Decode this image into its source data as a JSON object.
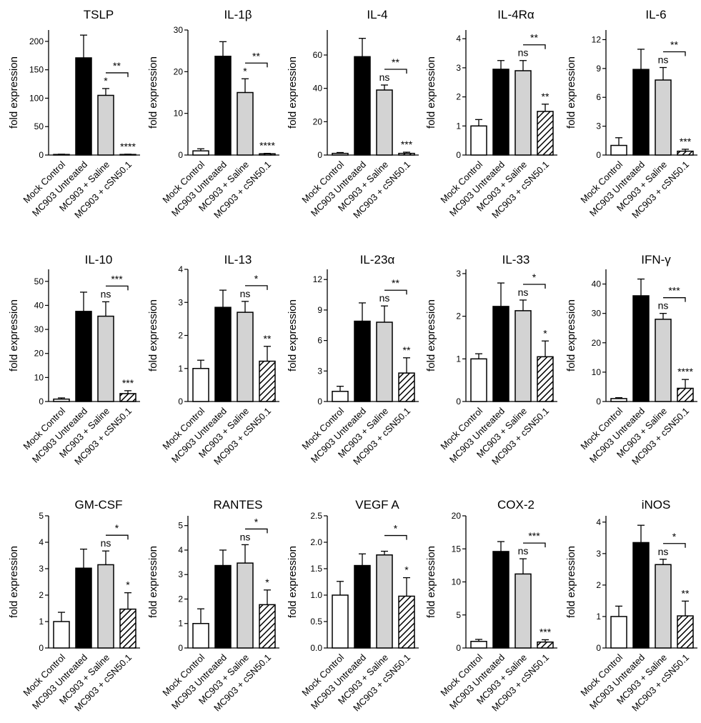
{
  "chart_data": [
    {
      "type": "bar",
      "title": "TSLP",
      "ylabel": "fold expression",
      "categories": [
        "Mock Control",
        "MC903 Untreated",
        "MC903 + Saline",
        "MC903 + cSN50.1"
      ],
      "values": [
        1,
        171,
        105,
        1
      ],
      "errors": [
        0.5,
        40,
        12,
        0.5
      ],
      "ylim": [
        0,
        220
      ],
      "yticks": [
        "0",
        "50",
        "100",
        "150",
        "200"
      ],
      "yticks_values": [
        0,
        50,
        100,
        150,
        200
      ],
      "bar_sig": [
        "",
        "",
        "*",
        "****"
      ],
      "bracket_sig": "**"
    },
    {
      "type": "bar",
      "title": "IL-1β",
      "ylabel": "fold expression",
      "categories": [
        "Mock Control",
        "MC903 Untreated",
        "MC903 + Saline",
        "MC903 + cSN50.1"
      ],
      "values": [
        1,
        23.7,
        15,
        0.3
      ],
      "errors": [
        0.5,
        3.5,
        3.3,
        0.1
      ],
      "ylim": [
        0,
        30
      ],
      "yticks": [
        "0",
        "10",
        "20",
        "30"
      ],
      "yticks_values": [
        0,
        10,
        20,
        30
      ],
      "bar_sig": [
        "",
        "",
        "*",
        "****"
      ],
      "bracket_sig": "**"
    },
    {
      "type": "bar",
      "title": "IL-4",
      "ylabel": "fold expression",
      "categories": [
        "Mock Control",
        "MC903 Untreated",
        "MC903 + Saline",
        "MC903 + cSN50.1"
      ],
      "values": [
        1,
        59,
        39,
        1
      ],
      "errors": [
        0.5,
        11,
        3,
        0.7
      ],
      "ylim": [
        0,
        75
      ],
      "yticks": [
        "0",
        "20",
        "40",
        "60"
      ],
      "yticks_values": [
        0,
        20,
        40,
        60
      ],
      "bar_sig": [
        "",
        "",
        "ns",
        "***"
      ],
      "bracket_sig": "**"
    },
    {
      "type": "bar",
      "title": "IL-4Rα",
      "ylabel": "fold expression",
      "categories": [
        "Mock Control",
        "MC903 Untreated",
        "MC903 + Saline",
        "MC903 + cSN50.1"
      ],
      "values": [
        1,
        2.95,
        2.9,
        1.5
      ],
      "errors": [
        0.22,
        0.3,
        0.35,
        0.25
      ],
      "ylim": [
        0,
        4.3
      ],
      "yticks": [
        "0",
        "1",
        "2",
        "3",
        "4"
      ],
      "yticks_values": [
        0,
        1,
        2,
        3,
        4
      ],
      "bar_sig": [
        "",
        "",
        "ns",
        "**"
      ],
      "bracket_sig": "**"
    },
    {
      "type": "bar",
      "title": "IL-6",
      "ylabel": "fold expression",
      "categories": [
        "Mock Control",
        "MC903 Untreated",
        "MC903 + Saline",
        "MC903 + cSN50.1"
      ],
      "values": [
        1,
        8.9,
        7.8,
        0.4
      ],
      "errors": [
        0.8,
        2.1,
        1.3,
        0.2
      ],
      "ylim": [
        0,
        13
      ],
      "yticks": [
        "0",
        "3",
        "6",
        "9",
        "12"
      ],
      "yticks_values": [
        0,
        3,
        6,
        9,
        12
      ],
      "bar_sig": [
        "",
        "",
        "ns",
        "***"
      ],
      "bracket_sig": "**"
    },
    {
      "type": "bar",
      "title": "IL-10",
      "ylabel": "fold expression",
      "categories": [
        "Mock Control",
        "MC903 Untreated",
        "MC903 + Saline",
        "MC903 + cSN50.1"
      ],
      "values": [
        1,
        37.5,
        35.5,
        3.3
      ],
      "errors": [
        0.5,
        8,
        6,
        1.2
      ],
      "ylim": [
        0,
        55
      ],
      "yticks": [
        "0",
        "10",
        "20",
        "30",
        "40",
        "50"
      ],
      "yticks_values": [
        0,
        10,
        20,
        30,
        40,
        50
      ],
      "bar_sig": [
        "",
        "",
        "ns",
        "***"
      ],
      "bracket_sig": "***"
    },
    {
      "type": "bar",
      "title": "IL-13",
      "ylabel": "fold expression",
      "categories": [
        "Mock Control",
        "MC903 Untreated",
        "MC903 + Saline",
        "MC903 + cSN50.1"
      ],
      "values": [
        1,
        2.85,
        2.7,
        1.22
      ],
      "errors": [
        0.25,
        0.52,
        0.33,
        0.45
      ],
      "ylim": [
        0,
        4
      ],
      "yticks": [
        "0",
        "1",
        "2",
        "3",
        "4"
      ],
      "yticks_values": [
        0,
        1,
        2,
        3,
        4
      ],
      "bar_sig": [
        "",
        "",
        "ns",
        "**"
      ],
      "bracket_sig": "*"
    },
    {
      "type": "bar",
      "title": "IL-23α",
      "ylabel": "fold expression",
      "categories": [
        "Mock Control",
        "MC903 Untreated",
        "MC903 + Saline",
        "MC903 + cSN50.1"
      ],
      "values": [
        1,
        7.9,
        7.8,
        2.8
      ],
      "errors": [
        0.5,
        1.8,
        1.6,
        1.5
      ],
      "ylim": [
        0,
        13
      ],
      "yticks": [
        "0",
        "3",
        "6",
        "9",
        "12"
      ],
      "yticks_values": [
        0,
        3,
        6,
        9,
        12
      ],
      "bar_sig": [
        "",
        "",
        "ns",
        "**"
      ],
      "bracket_sig": "**"
    },
    {
      "type": "bar",
      "title": "IL-33",
      "ylabel": "fold expression",
      "categories": [
        "Mock Control",
        "MC903 Untreated",
        "MC903 + Saline",
        "MC903 + cSN50.1"
      ],
      "values": [
        1,
        2.23,
        2.13,
        1.05
      ],
      "errors": [
        0.12,
        0.55,
        0.25,
        0.37
      ],
      "ylim": [
        0,
        3.1
      ],
      "yticks": [
        "0",
        "1",
        "2",
        "3"
      ],
      "yticks_values": [
        0,
        1,
        2,
        3
      ],
      "bar_sig": [
        "",
        "",
        "ns",
        "*"
      ],
      "bracket_sig": "*"
    },
    {
      "type": "bar",
      "title": "IFN-γ",
      "ylabel": "fold expression",
      "categories": [
        "Mock Control",
        "MC903 Untreated",
        "MC903 + Saline",
        "MC903 + cSN50.1"
      ],
      "values": [
        1,
        36,
        28,
        4.5
      ],
      "errors": [
        0.3,
        5.7,
        2,
        3
      ],
      "ylim": [
        0,
        45
      ],
      "yticks": [
        "0",
        "10",
        "20",
        "30",
        "40"
      ],
      "yticks_values": [
        0,
        10,
        20,
        30,
        40
      ],
      "bar_sig": [
        "",
        "",
        "ns",
        "****"
      ],
      "bracket_sig": "***"
    },
    {
      "type": "bar",
      "title": "GM-CSF",
      "ylabel": "fold expression",
      "categories": [
        "Mock Control",
        "MC903 Untreated",
        "MC903 + Saline",
        "MC903 + cSN50.1"
      ],
      "values": [
        1,
        3.02,
        3.15,
        1.47
      ],
      "errors": [
        0.35,
        0.72,
        0.52,
        0.62
      ],
      "ylim": [
        0,
        5
      ],
      "yticks": [
        "0",
        "1",
        "2",
        "3",
        "4",
        "5"
      ],
      "yticks_values": [
        0,
        1,
        2,
        3,
        4,
        5
      ],
      "bar_sig": [
        "",
        "",
        "ns",
        "*"
      ],
      "bracket_sig": "*"
    },
    {
      "type": "bar",
      "title": "RANTES",
      "ylabel": "fold expression",
      "categories": [
        "Mock Control",
        "MC903 Untreated",
        "MC903 + Saline",
        "MC903 + cSN50.1"
      ],
      "values": [
        1,
        3.37,
        3.47,
        1.77
      ],
      "errors": [
        0.6,
        0.63,
        0.75,
        0.6
      ],
      "ylim": [
        0,
        5.4
      ],
      "yticks": [
        "0",
        "1",
        "2",
        "3",
        "4",
        "5"
      ],
      "yticks_values": [
        0,
        1,
        2,
        3,
        4,
        5
      ],
      "bar_sig": [
        "",
        "",
        "ns",
        "*"
      ],
      "bracket_sig": "*"
    },
    {
      "type": "bar",
      "title": "VEGF A",
      "ylabel": "fold expression",
      "categories": [
        "Mock Control",
        "MC903 Untreated",
        "MC903 + Saline",
        "MC903 + cSN50.1"
      ],
      "values": [
        1,
        1.56,
        1.76,
        0.98
      ],
      "errors": [
        0.26,
        0.22,
        0.07,
        0.35
      ],
      "ylim": [
        0,
        2.5
      ],
      "yticks": [
        "0.0",
        "0.5",
        "1.0",
        "1.5",
        "2.0",
        "2.5"
      ],
      "yticks_values": [
        0,
        0.5,
        1,
        1.5,
        2,
        2.5
      ],
      "bar_sig": [
        "",
        "",
        "",
        "*"
      ],
      "bracket_sig": "*"
    },
    {
      "type": "bar",
      "title": "COX-2",
      "ylabel": "fold expression",
      "categories": [
        "Mock Control",
        "MC903 Untreated",
        "MC903 + Saline",
        "MC903 + cSN50.1"
      ],
      "values": [
        1,
        14.6,
        11.2,
        0.9
      ],
      "errors": [
        0.3,
        1.5,
        2.3,
        0.35
      ],
      "ylim": [
        0,
        20
      ],
      "yticks": [
        "0",
        "5",
        "10",
        "15",
        "20"
      ],
      "yticks_values": [
        0,
        5,
        10,
        15,
        20
      ],
      "bar_sig": [
        "",
        "",
        "ns",
        "***"
      ],
      "bracket_sig": "***"
    },
    {
      "type": "bar",
      "title": "iNOS",
      "ylabel": "fold expression",
      "categories": [
        "Mock Control",
        "MC903 Untreated",
        "MC903 + Saline",
        "MC903 + cSN50.1"
      ],
      "values": [
        1,
        3.35,
        2.65,
        1.02
      ],
      "errors": [
        0.33,
        0.55,
        0.17,
        0.47
      ],
      "ylim": [
        0,
        4.2
      ],
      "yticks": [
        "0",
        "1",
        "2",
        "3",
        "4"
      ],
      "yticks_values": [
        0,
        1,
        2,
        3,
        4
      ],
      "bar_sig": [
        "",
        "",
        "ns",
        "**"
      ],
      "bracket_sig": "*"
    }
  ],
  "colors": {
    "fills": [
      "#ffffff",
      "#000000",
      "#d3d3d3",
      "hatch"
    ],
    "stroke": "#000000"
  }
}
